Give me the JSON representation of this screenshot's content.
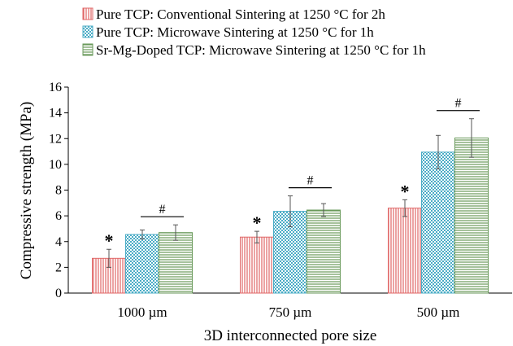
{
  "chart_data": {
    "type": "bar",
    "xlabel": "3D interconnected pore size",
    "ylabel": "Compressive strength (MPa)",
    "ylim": [
      0,
      16
    ],
    "yticks": [
      "0",
      "2",
      "4",
      "6",
      "8",
      "10",
      "12",
      "14",
      "16"
    ],
    "grid": false,
    "legend_position": "top",
    "categories": [
      "1000 µm",
      "750 µm",
      "500 µm"
    ],
    "series": [
      {
        "name": "Pure TCP: Conventional Sintering at 1250 °C for 2h",
        "values": [
          2.7,
          4.35,
          6.6
        ],
        "errors": [
          0.7,
          0.45,
          0.65
        ],
        "color": "#e06666",
        "pattern": "vertical-lines"
      },
      {
        "name": "Pure TCP: Microwave Sintering at 1250 °C for 1h",
        "values": [
          4.55,
          6.35,
          10.95
        ],
        "errors": [
          0.35,
          1.2,
          1.3
        ],
        "color": "#4bacc6",
        "pattern": "dots"
      },
      {
        "name": "Sr-Mg-Doped TCP: Microwave Sintering at 1250 °C for 1h",
        "values": [
          4.7,
          6.45,
          12.05
        ],
        "errors": [
          0.6,
          0.5,
          1.5
        ],
        "color": "#6a9a5b",
        "pattern": "horizontal-lines"
      }
    ],
    "annotations": {
      "star": "*",
      "hash": "#"
    }
  }
}
